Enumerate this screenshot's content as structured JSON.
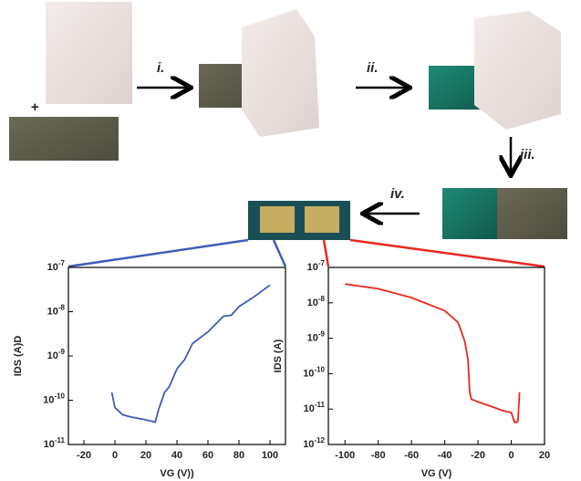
{
  "steps": {
    "plus": "+",
    "i": "i.",
    "ii": "ii.",
    "iii": "iii.",
    "iv": "iv."
  },
  "chart_data": [
    {
      "type": "line",
      "x_label": "VG (V))",
      "y_label": "IDS (A)D",
      "log_y": true,
      "xlim": [
        -30,
        110
      ],
      "xticks": [
        -20,
        0,
        20,
        40,
        60,
        80,
        100
      ],
      "ylim": [
        1e-11,
        1e-07
      ],
      "yticks": [
        {
          "value": 1e-11,
          "label": "10-11"
        },
        {
          "value": 1e-10,
          "label": "10-10"
        },
        {
          "value": 1e-09,
          "label": "10-9"
        },
        {
          "value": 1e-08,
          "label": "10-8"
        },
        {
          "value": 1e-07,
          "label": "10-7"
        }
      ],
      "series": [
        {
          "color": "#3f5bb8",
          "x": [
            -2,
            0,
            5,
            10,
            20,
            26,
            28,
            32,
            35,
            40,
            45,
            50,
            60,
            70,
            75,
            80,
            90,
            100
          ],
          "values": [
            1.5e-10,
            6.8e-11,
            4.7e-11,
            4.2e-11,
            3.6e-11,
            3.2e-11,
            5.9e-11,
            1.5e-10,
            2e-10,
            5.1e-10,
            8.3e-10,
            1.9e-09,
            3.5e-09,
            7.9e-09,
            8.3e-09,
            1.3e-08,
            2.2e-08,
            4e-08
          ]
        }
      ]
    },
    {
      "type": "line",
      "x_label": "VG (V)",
      "y_label": "IDS (A)",
      "log_y": true,
      "xlim": [
        -110,
        20
      ],
      "xticks": [
        -100,
        -80,
        -60,
        -40,
        -20,
        0,
        20
      ],
      "ylim": [
        1e-12,
        1e-07
      ],
      "yticks": [
        {
          "value": 1e-12,
          "label": "10-12"
        },
        {
          "value": 1e-11,
          "label": "10-11"
        },
        {
          "value": 1e-10,
          "label": "10-10"
        },
        {
          "value": 1e-09,
          "label": "10-9"
        },
        {
          "value": 1e-08,
          "label": "10-8"
        },
        {
          "value": 1e-07,
          "label": "10-7"
        }
      ],
      "series": [
        {
          "color": "#e8281e",
          "x": [
            -100,
            -80,
            -60,
            -40,
            -32,
            -28,
            -26,
            -25,
            -24,
            -20,
            -10,
            -5,
            0,
            2,
            4,
            5
          ],
          "values": [
            3.4e-08,
            2.5e-08,
            1.4e-08,
            6e-09,
            2.8e-09,
            8.3e-10,
            2.5e-10,
            3e-11,
            1.9e-11,
            1.6e-11,
            1.1e-11,
            9e-12,
            8e-12,
            4.2e-12,
            4.5e-12,
            3e-11
          ]
        }
      ]
    }
  ]
}
